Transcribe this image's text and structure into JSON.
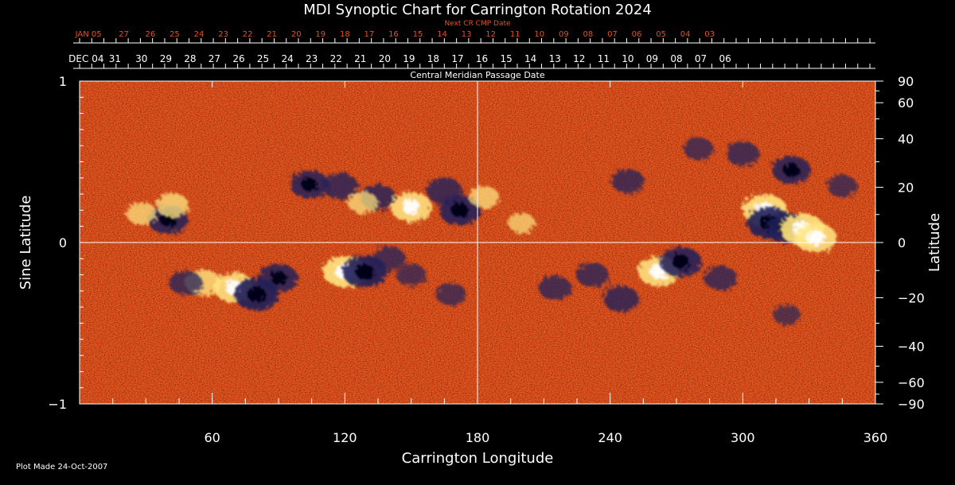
{
  "chart_data": {
    "type": "heatmap",
    "title": "MDI Synoptic Chart for Carrington Rotation 2024",
    "xlabel": "Carrington Longitude",
    "ylabel_left": "Sine Latitude",
    "ylabel_right": "Latitude",
    "top_axis_label": "Central Meridian Passage Date",
    "next_axis_label": "Next CR CMP Date",
    "footer": "Plot Made 24-Oct-2007",
    "xlim": [
      0,
      360
    ],
    "ylim": [
      -1,
      1
    ],
    "grid": false,
    "x_ticks": [
      60,
      120,
      180,
      240,
      300,
      360
    ],
    "y_left_ticks": [
      {
        "value": 1,
        "label": "1"
      },
      {
        "value": 0,
        "label": "0"
      },
      {
        "value": -1,
        "label": "−1"
      }
    ],
    "y_right_ticks": [
      {
        "deg": 90,
        "label": "90"
      },
      {
        "deg": 60,
        "label": "60"
      },
      {
        "deg": 40,
        "label": "40"
      },
      {
        "deg": 20,
        "label": "20"
      },
      {
        "deg": 0,
        "label": "0"
      },
      {
        "deg": -20,
        "label": "−20"
      },
      {
        "deg": -40,
        "label": "−40"
      },
      {
        "deg": -60,
        "label": "−60"
      },
      {
        "deg": -90,
        "label": "−90"
      }
    ],
    "reference_lines": {
      "x": 180,
      "y": 0
    },
    "cmp_dates": [
      {
        "lon": 3,
        "label": "DEC 04"
      },
      {
        "lon": 16,
        "label": "31"
      },
      {
        "lon": 28,
        "label": "30"
      },
      {
        "lon": 39,
        "label": "29"
      },
      {
        "lon": 50,
        "label": "28"
      },
      {
        "lon": 61,
        "label": "27"
      },
      {
        "lon": 72,
        "label": "26"
      },
      {
        "lon": 83,
        "label": "25"
      },
      {
        "lon": 94,
        "label": "24"
      },
      {
        "lon": 105,
        "label": "23"
      },
      {
        "lon": 116,
        "label": "22"
      },
      {
        "lon": 127,
        "label": "21"
      },
      {
        "lon": 138,
        "label": "20"
      },
      {
        "lon": 149,
        "label": "19"
      },
      {
        "lon": 160,
        "label": "18"
      },
      {
        "lon": 171,
        "label": "17"
      },
      {
        "lon": 182,
        "label": "16"
      },
      {
        "lon": 193,
        "label": "15"
      },
      {
        "lon": 204,
        "label": "14"
      },
      {
        "lon": 215,
        "label": "13"
      },
      {
        "lon": 226,
        "label": "12"
      },
      {
        "lon": 237,
        "label": "11"
      },
      {
        "lon": 248,
        "label": "10"
      },
      {
        "lon": 259,
        "label": "09"
      },
      {
        "lon": 270,
        "label": "08"
      },
      {
        "lon": 281,
        "label": "07"
      },
      {
        "lon": 292,
        "label": "06"
      }
    ],
    "next_cmp_dates": [
      {
        "lon": 4,
        "label": "JAN 05"
      },
      {
        "lon": 20,
        "label": "27"
      },
      {
        "lon": 32,
        "label": "26"
      },
      {
        "lon": 43,
        "label": "25"
      },
      {
        "lon": 54,
        "label": "24"
      },
      {
        "lon": 65,
        "label": "23"
      },
      {
        "lon": 76,
        "label": "22"
      },
      {
        "lon": 87,
        "label": "21"
      },
      {
        "lon": 98,
        "label": "20"
      },
      {
        "lon": 109,
        "label": "19"
      },
      {
        "lon": 120,
        "label": "18"
      },
      {
        "lon": 131,
        "label": "17"
      },
      {
        "lon": 142,
        "label": "16"
      },
      {
        "lon": 153,
        "label": "15"
      },
      {
        "lon": 164,
        "label": "14"
      },
      {
        "lon": 175,
        "label": "13"
      },
      {
        "lon": 186,
        "label": "12"
      },
      {
        "lon": 197,
        "label": "11"
      },
      {
        "lon": 208,
        "label": "10"
      },
      {
        "lon": 219,
        "label": "09"
      },
      {
        "lon": 230,
        "label": "08"
      },
      {
        "lon": 241,
        "label": "07"
      },
      {
        "lon": 252,
        "label": "06"
      },
      {
        "lon": 263,
        "label": "05"
      },
      {
        "lon": 274,
        "label": "04"
      },
      {
        "lon": 285,
        "label": "03"
      }
    ],
    "colorscale": {
      "background": "#e8501a",
      "positive": "#ffe680",
      "positive_strong": "#ffffff",
      "negative": "#20205a",
      "negative_strong": "#000014"
    },
    "regions": [
      {
        "lon": 40,
        "sinlat": 0.14,
        "polarity": "negative",
        "strength": 0.85
      },
      {
        "lon": 28,
        "sinlat": 0.18,
        "polarity": "positive",
        "strength": 0.5
      },
      {
        "lon": 42,
        "sinlat": 0.23,
        "polarity": "positive",
        "strength": 0.6
      },
      {
        "lon": 56,
        "sinlat": -0.25,
        "polarity": "positive",
        "strength": 0.7
      },
      {
        "lon": 70,
        "sinlat": -0.28,
        "polarity": "positive",
        "strength": 0.9
      },
      {
        "lon": 48,
        "sinlat": -0.25,
        "polarity": "negative",
        "strength": 0.6
      },
      {
        "lon": 80,
        "sinlat": -0.32,
        "polarity": "negative",
        "strength": 1.0
      },
      {
        "lon": 90,
        "sinlat": -0.22,
        "polarity": "negative",
        "strength": 0.8
      },
      {
        "lon": 104,
        "sinlat": 0.36,
        "polarity": "negative",
        "strength": 0.8
      },
      {
        "lon": 118,
        "sinlat": 0.35,
        "polarity": "negative",
        "strength": 0.7
      },
      {
        "lon": 135,
        "sinlat": 0.28,
        "polarity": "negative",
        "strength": 0.7
      },
      {
        "lon": 150,
        "sinlat": 0.22,
        "polarity": "positive",
        "strength": 0.9
      },
      {
        "lon": 128,
        "sinlat": 0.25,
        "polarity": "positive",
        "strength": 0.5
      },
      {
        "lon": 165,
        "sinlat": 0.32,
        "polarity": "negative",
        "strength": 0.7
      },
      {
        "lon": 172,
        "sinlat": 0.2,
        "polarity": "negative",
        "strength": 0.9
      },
      {
        "lon": 183,
        "sinlat": 0.28,
        "polarity": "positive",
        "strength": 0.5
      },
      {
        "lon": 120,
        "sinlat": -0.18,
        "polarity": "positive",
        "strength": 1.0
      },
      {
        "lon": 129,
        "sinlat": -0.18,
        "polarity": "negative",
        "strength": 1.0
      },
      {
        "lon": 140,
        "sinlat": -0.1,
        "polarity": "negative",
        "strength": 0.6
      },
      {
        "lon": 150,
        "sinlat": -0.2,
        "polarity": "negative",
        "strength": 0.5
      },
      {
        "lon": 168,
        "sinlat": -0.32,
        "polarity": "negative",
        "strength": 0.5
      },
      {
        "lon": 200,
        "sinlat": 0.12,
        "polarity": "positive",
        "strength": 0.4
      },
      {
        "lon": 215,
        "sinlat": -0.28,
        "polarity": "negative",
        "strength": 0.6
      },
      {
        "lon": 232,
        "sinlat": -0.2,
        "polarity": "negative",
        "strength": 0.6
      },
      {
        "lon": 245,
        "sinlat": -0.35,
        "polarity": "negative",
        "strength": 0.7
      },
      {
        "lon": 262,
        "sinlat": -0.18,
        "polarity": "positive",
        "strength": 0.9
      },
      {
        "lon": 272,
        "sinlat": -0.12,
        "polarity": "negative",
        "strength": 0.9
      },
      {
        "lon": 290,
        "sinlat": -0.22,
        "polarity": "negative",
        "strength": 0.6
      },
      {
        "lon": 248,
        "sinlat": 0.38,
        "polarity": "negative",
        "strength": 0.6
      },
      {
        "lon": 280,
        "sinlat": 0.58,
        "polarity": "negative",
        "strength": 0.5
      },
      {
        "lon": 300,
        "sinlat": 0.55,
        "polarity": "negative",
        "strength": 0.6
      },
      {
        "lon": 322,
        "sinlat": 0.45,
        "polarity": "negative",
        "strength": 0.8
      },
      {
        "lon": 345,
        "sinlat": 0.35,
        "polarity": "negative",
        "strength": 0.5
      },
      {
        "lon": 310,
        "sinlat": 0.2,
        "polarity": "positive",
        "strength": 1.0
      },
      {
        "lon": 312,
        "sinlat": 0.12,
        "polarity": "negative",
        "strength": 1.0
      },
      {
        "lon": 320,
        "sinlat": 0.09,
        "polarity": "negative",
        "strength": 0.9
      },
      {
        "lon": 327,
        "sinlat": 0.08,
        "polarity": "positive",
        "strength": 1.0
      },
      {
        "lon": 333,
        "sinlat": 0.03,
        "polarity": "positive",
        "strength": 0.9
      },
      {
        "lon": 320,
        "sinlat": -0.45,
        "polarity": "negative",
        "strength": 0.4
      }
    ]
  }
}
